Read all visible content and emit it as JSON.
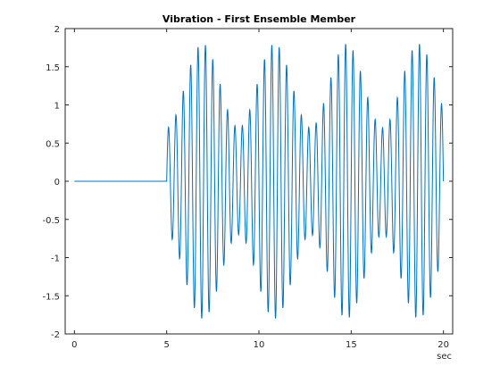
{
  "chart_data": {
    "type": "line",
    "title": "Vibration - First Ensemble Member",
    "xlabel": "sec",
    "ylabel": "",
    "xlim": [
      -0.5,
      20.5
    ],
    "ylim": [
      -2,
      2
    ],
    "x_ticks": [
      0,
      5,
      10,
      15,
      20
    ],
    "x_tick_labels": [
      "0",
      "5",
      "10",
      "15",
      "20"
    ],
    "y_ticks": [
      -2,
      -1.5,
      -1,
      -0.5,
      0,
      0.5,
      1,
      1.5,
      2
    ],
    "y_tick_labels": [
      "-2",
      "-1.5",
      "-1",
      "-0.5",
      "0",
      "0.5",
      "1",
      "1.5",
      "2"
    ],
    "grid": false,
    "series": [
      {
        "color": "#0072BD",
        "description": "zero from t=0 to t=5 sec, then oscillation y = A(t)*sin(2*pi*2.5*(t-5)) with envelope A(t) = 1.25 - 0.55*cos(2*pi*(t-5)/3.9), sampled every 0.01 sec up to t=20",
        "x_range": [
          0,
          20
        ],
        "y_range": [
          -1.8,
          1.8
        ]
      }
    ]
  }
}
